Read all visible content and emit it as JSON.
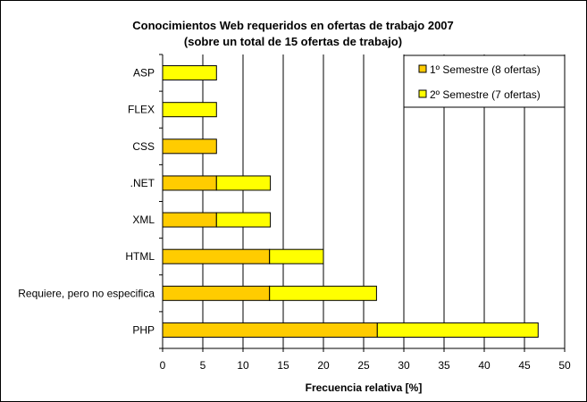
{
  "chart_data": {
    "type": "bar",
    "orientation": "horizontal",
    "stacked": true,
    "title": "Conocimientos Web requeridos en ofertas de trabajo 2007",
    "subtitle": "(sobre un total de 15 ofertas de trabajo)",
    "xlabel": "Frecuencia relativa [%]",
    "ylabel": "",
    "xlim": [
      0,
      50
    ],
    "xticks": [
      0,
      5,
      10,
      15,
      20,
      25,
      30,
      35,
      40,
      45,
      50
    ],
    "grid": "vertical",
    "legend_position": "top-right",
    "categories": [
      "ASP",
      "FLEX",
      "CSS",
      ".NET",
      "XML",
      "HTML",
      "Requiere, pero no especifica",
      "PHP"
    ],
    "series": [
      {
        "name": "1º Semestre (8 ofertas)",
        "color": "#FFCC00",
        "values": [
          0,
          0,
          6.7,
          6.7,
          6.7,
          13.3,
          13.3,
          26.7
        ]
      },
      {
        "name": "2º Semestre (7 ofertas)",
        "color": "#FFFF00",
        "values": [
          6.7,
          6.7,
          0,
          6.7,
          6.7,
          6.7,
          13.3,
          20.0
        ]
      }
    ]
  }
}
